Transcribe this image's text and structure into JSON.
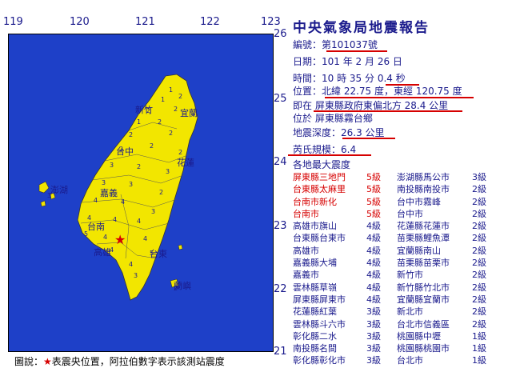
{
  "title": "中央氣象局地震報告",
  "axes": {
    "lon_ticks": [
      "119",
      "120",
      "121",
      "122",
      "123"
    ],
    "lat_ticks": [
      "26",
      "25",
      "24",
      "23",
      "22",
      "21"
    ]
  },
  "report": {
    "number_label": "編號：",
    "number_value": "第101037號",
    "date_label": "日期：",
    "date_value": "101 年 2 月 26 日",
    "time_label": "時間：",
    "time_value": "10 時 35 分 0.4 秒",
    "position_label": "位置：",
    "position_value": "北緯 22.75 度，東經 120.75 度",
    "location_line1": "即在 屏東縣政府東偏北方 28.4 公里",
    "location_line2": "位於 屏東縣霧台鄉",
    "depth_label": "地震深度：",
    "depth_value": "26.3 公里",
    "magnitude_label": "芮氏規模：",
    "magnitude_value": "6.4",
    "intensity_heading": "各地最大震度"
  },
  "intensity_left": [
    {
      "place": "屏東縣三地門",
      "level": "5級",
      "highlight": true
    },
    {
      "place": "台東縣太麻里",
      "level": "5級",
      "highlight": true
    },
    {
      "place": "台南市新化",
      "level": "5級",
      "highlight": true
    },
    {
      "place": "台南市",
      "level": "5級",
      "highlight": true
    },
    {
      "place": "高雄市旗山",
      "level": "4級",
      "highlight": false
    },
    {
      "place": "台東縣台東市",
      "level": "4級",
      "highlight": false
    },
    {
      "place": "高雄市",
      "level": "4級",
      "highlight": false
    },
    {
      "place": "嘉義縣大埔",
      "level": "4級",
      "highlight": false
    },
    {
      "place": "嘉義市",
      "level": "4級",
      "highlight": false
    },
    {
      "place": "雲林縣草嶺",
      "level": "4級",
      "highlight": false
    },
    {
      "place": "屏東縣屏東市",
      "level": "4級",
      "highlight": false
    },
    {
      "place": "花蓮縣紅葉",
      "level": "3級",
      "highlight": false
    },
    {
      "place": "雲林縣斗六市",
      "level": "3級",
      "highlight": false
    },
    {
      "place": "彰化縣二水",
      "level": "3級",
      "highlight": false
    },
    {
      "place": "南投縣名間",
      "level": "3級",
      "highlight": false
    },
    {
      "place": "彰化縣彰化市",
      "level": "3級",
      "highlight": false
    }
  ],
  "intensity_right": [
    {
      "place": "澎湖縣馬公市",
      "level": "3級"
    },
    {
      "place": "南投縣南投市",
      "level": "2級"
    },
    {
      "place": "台中市霧峰",
      "level": "2級"
    },
    {
      "place": "台中市",
      "level": "2級"
    },
    {
      "place": "花蓮縣花蓮市",
      "level": "2級"
    },
    {
      "place": "苗栗縣鯉魚潭",
      "level": "2級"
    },
    {
      "place": "宜蘭縣南山",
      "level": "2級"
    },
    {
      "place": "苗栗縣苗栗市",
      "level": "2級"
    },
    {
      "place": "新竹市",
      "level": "2級"
    },
    {
      "place": "新竹縣竹北市",
      "level": "2級"
    },
    {
      "place": "宜蘭縣宜蘭市",
      "level": "2級"
    },
    {
      "place": "新北市",
      "level": "2級"
    },
    {
      "place": "台北市信義區",
      "level": "2級"
    },
    {
      "place": "桃園縣中壢",
      "level": "1級"
    },
    {
      "place": "桃園縣桃園市",
      "level": "1級"
    },
    {
      "place": "台北市",
      "level": "1級"
    }
  ],
  "map_labels": {
    "xinzhu": "新竹",
    "yilan": "宜蘭",
    "taizhong": "台中",
    "hualian": "花蓮",
    "penghu": "澎湖",
    "jiayi": "嘉義",
    "tainan": "台南",
    "gaoxiong": "高雄",
    "taidong": "台東",
    "lanyu": "蘭嶼"
  },
  "legend": {
    "prefix": "圖說：",
    "star": "★",
    "text": "表震央位置，阿拉伯數字表示該測站震度"
  },
  "colors": {
    "sea": "#1e40c8",
    "land": "#f2e600",
    "text": "#1a1a8c",
    "highlight": "#d60000"
  }
}
